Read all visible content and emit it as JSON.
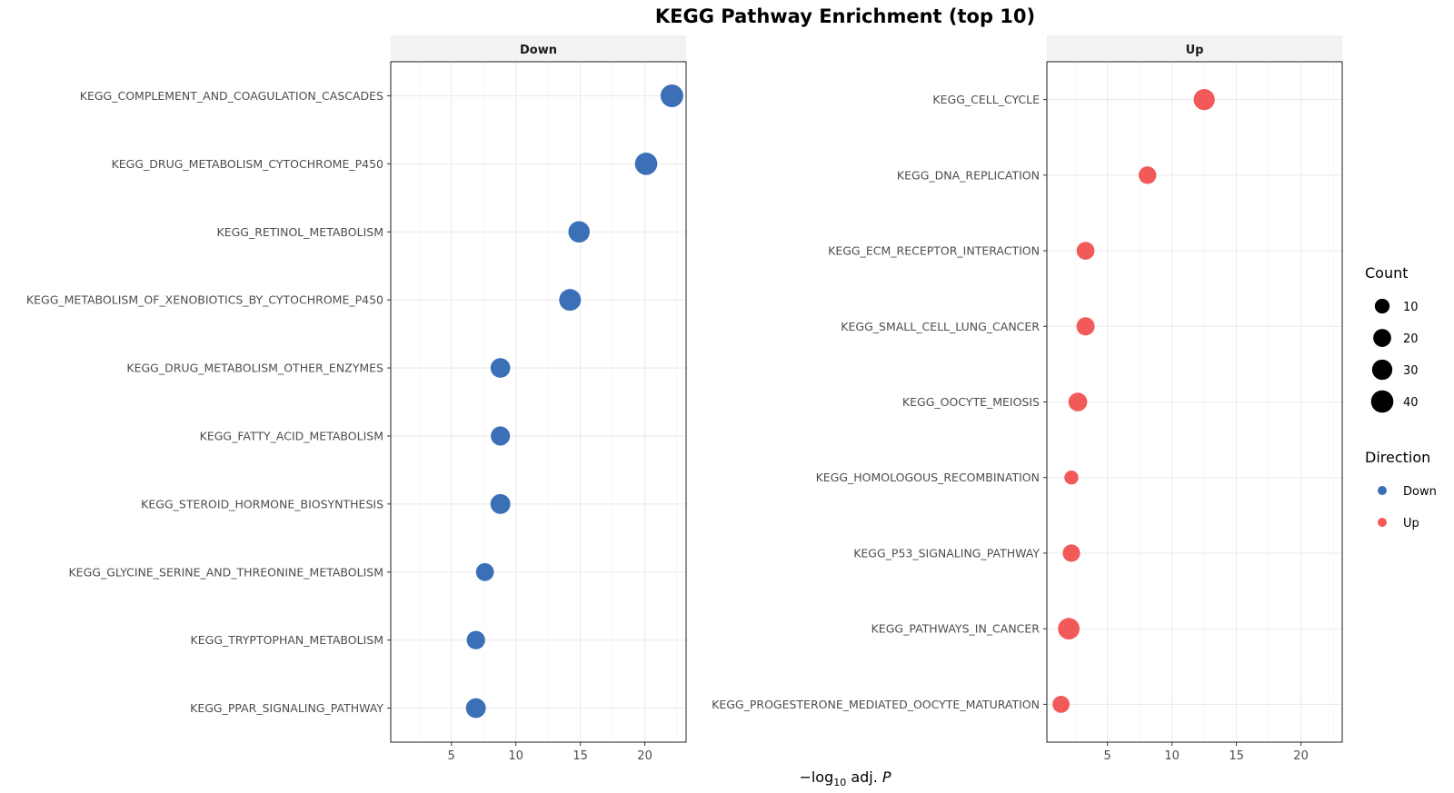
{
  "chart_data": {
    "type": "scatter",
    "title": "KEGG Pathway Enrichment (top 10)",
    "xlabel": {
      "prefix": "−log",
      "subscript": "10",
      "middle": " adj. ",
      "italic": "P"
    },
    "ylabel": "",
    "xlim": [
      0.3,
      23.2
    ],
    "xticks": [
      5,
      10,
      15,
      20
    ],
    "grid": true,
    "colors": {
      "Down": "#3B6FB6",
      "Up": "#F25A5A"
    },
    "facets": [
      {
        "name": "Down",
        "points": [
          {
            "term": "KEGG_COMPLEMENT_AND_COAGULATION_CASCADES",
            "x": 22.1,
            "count": 42
          },
          {
            "term": "KEGG_DRUG_METABOLISM_CYTOCHROME_P450",
            "x": 20.1,
            "count": 40
          },
          {
            "term": "KEGG_RETINOL_METABOLISM",
            "x": 14.9,
            "count": 35
          },
          {
            "term": "KEGG_METABOLISM_OF_XENOBIOTICS_BY_CYTOCHROME_P450",
            "x": 14.2,
            "count": 37
          },
          {
            "term": "KEGG_DRUG_METABOLISM_OTHER_ENZYMES",
            "x": 8.8,
            "count": 27
          },
          {
            "term": "KEGG_FATTY_ACID_METABOLISM",
            "x": 8.8,
            "count": 25
          },
          {
            "term": "KEGG_STEROID_HORMONE_BIOSYNTHESIS",
            "x": 8.8,
            "count": 28
          },
          {
            "term": "KEGG_GLYCINE_SERINE_AND_THREONINE_METABOLISM",
            "x": 7.6,
            "count": 20
          },
          {
            "term": "KEGG_TRYPTOPHAN_METABOLISM",
            "x": 6.9,
            "count": 22
          },
          {
            "term": "KEGG_PPAR_SIGNALING_PATHWAY",
            "x": 6.9,
            "count": 28
          }
        ]
      },
      {
        "name": "Up",
        "points": [
          {
            "term": "KEGG_CELL_CYCLE",
            "x": 12.5,
            "count": 34
          },
          {
            "term": "KEGG_DNA_REPLICATION",
            "x": 8.1,
            "count": 19
          },
          {
            "term": "KEGG_ECM_RECEPTOR_INTERACTION",
            "x": 3.3,
            "count": 20
          },
          {
            "term": "KEGG_SMALL_CELL_LUNG_CANCER",
            "x": 3.3,
            "count": 21
          },
          {
            "term": "KEGG_OOCYTE_MEIOSIS",
            "x": 2.7,
            "count": 23
          },
          {
            "term": "KEGG_HOMOLOGOUS_RECOMBINATION",
            "x": 2.2,
            "count": 8
          },
          {
            "term": "KEGG_P53_SIGNALING_PATHWAY",
            "x": 2.2,
            "count": 18
          },
          {
            "term": "KEGG_PATHWAYS_IN_CANCER",
            "x": 2.0,
            "count": 36
          },
          {
            "term": "KEGG_PROGESTERONE_MEDIATED_OOCYTE_MATURATION",
            "x": 1.4,
            "count": 17
          }
        ]
      }
    ],
    "legend": {
      "position": "right",
      "count": {
        "title": "Count",
        "values": [
          10,
          20,
          30,
          40
        ]
      },
      "direction": {
        "title": "Direction",
        "entries": [
          "Down",
          "Up"
        ]
      }
    }
  }
}
